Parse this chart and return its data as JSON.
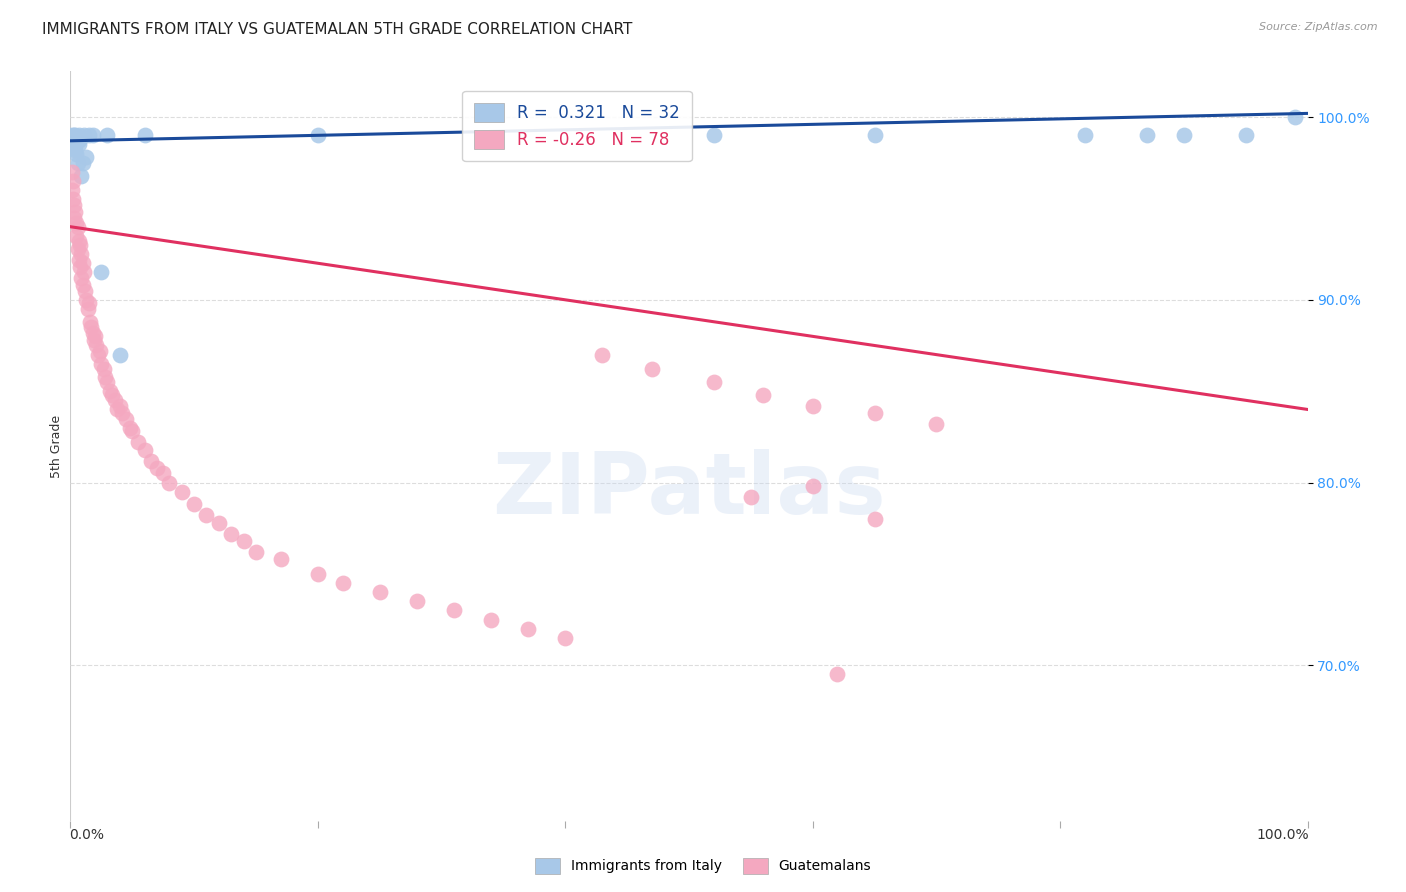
{
  "title": "IMMIGRANTS FROM ITALY VS GUATEMALAN 5TH GRADE CORRELATION CHART",
  "source": "Source: ZipAtlas.com",
  "ylabel": "5th Grade",
  "xlim": [
    0.0,
    1.0
  ],
  "ylim": [
    0.615,
    1.025
  ],
  "yticks": [
    0.7,
    0.8,
    0.9,
    1.0
  ],
  "ytick_labels": [
    "70.0%",
    "80.0%",
    "90.0%",
    "100.0%"
  ],
  "italy_R": 0.321,
  "italy_N": 32,
  "guatemalan_R": -0.26,
  "guatemalan_N": 78,
  "italy_color": "#a8c8e8",
  "italy_line_color": "#1a4a9a",
  "guatemalan_color": "#f4a8c0",
  "guatemalan_line_color": "#e03060",
  "watermark": "ZIPatlas",
  "background_color": "#ffffff",
  "grid_color": "#cccccc",
  "title_fontsize": 11,
  "axis_label_fontsize": 9,
  "tick_fontsize": 9,
  "legend_fontsize": 11,
  "italy_x": [
    0.001,
    0.002,
    0.002,
    0.003,
    0.003,
    0.004,
    0.004,
    0.005,
    0.005,
    0.006,
    0.006,
    0.007,
    0.007,
    0.008,
    0.009,
    0.01,
    0.011,
    0.013,
    0.015,
    0.018,
    0.025,
    0.03,
    0.04,
    0.06,
    0.2,
    0.52,
    0.65,
    0.82,
    0.87,
    0.9,
    0.95,
    0.99
  ],
  "italy_y": [
    0.99,
    0.988,
    0.985,
    0.99,
    0.983,
    0.99,
    0.982,
    0.988,
    0.98,
    0.987,
    0.975,
    0.99,
    0.985,
    0.988,
    0.968,
    0.975,
    0.99,
    0.978,
    0.99,
    0.99,
    0.915,
    0.99,
    0.87,
    0.99,
    0.99,
    0.99,
    0.99,
    0.99,
    0.99,
    0.99,
    0.99,
    1.0
  ],
  "guatemalan_x": [
    0.001,
    0.001,
    0.002,
    0.002,
    0.003,
    0.003,
    0.004,
    0.005,
    0.005,
    0.006,
    0.006,
    0.007,
    0.007,
    0.008,
    0.008,
    0.009,
    0.009,
    0.01,
    0.01,
    0.011,
    0.012,
    0.013,
    0.014,
    0.015,
    0.016,
    0.017,
    0.018,
    0.019,
    0.02,
    0.021,
    0.022,
    0.024,
    0.025,
    0.027,
    0.028,
    0.03,
    0.032,
    0.034,
    0.036,
    0.038,
    0.04,
    0.042,
    0.045,
    0.048,
    0.05,
    0.055,
    0.06,
    0.065,
    0.07,
    0.075,
    0.08,
    0.09,
    0.1,
    0.11,
    0.12,
    0.13,
    0.14,
    0.15,
    0.17,
    0.2,
    0.22,
    0.25,
    0.28,
    0.31,
    0.34,
    0.37,
    0.4,
    0.43,
    0.47,
    0.52,
    0.56,
    0.6,
    0.65,
    0.7,
    0.6,
    0.55,
    0.62,
    0.65
  ],
  "guatemalan_y": [
    0.97,
    0.96,
    0.965,
    0.955,
    0.952,
    0.945,
    0.948,
    0.942,
    0.935,
    0.94,
    0.928,
    0.932,
    0.922,
    0.93,
    0.918,
    0.925,
    0.912,
    0.92,
    0.908,
    0.915,
    0.905,
    0.9,
    0.895,
    0.898,
    0.888,
    0.885,
    0.882,
    0.878,
    0.88,
    0.875,
    0.87,
    0.872,
    0.865,
    0.862,
    0.858,
    0.855,
    0.85,
    0.848,
    0.845,
    0.84,
    0.842,
    0.838,
    0.835,
    0.83,
    0.828,
    0.822,
    0.818,
    0.812,
    0.808,
    0.805,
    0.8,
    0.795,
    0.788,
    0.782,
    0.778,
    0.772,
    0.768,
    0.762,
    0.758,
    0.75,
    0.745,
    0.74,
    0.735,
    0.73,
    0.725,
    0.72,
    0.715,
    0.87,
    0.862,
    0.855,
    0.848,
    0.842,
    0.838,
    0.832,
    0.798,
    0.792,
    0.695,
    0.78
  ]
}
